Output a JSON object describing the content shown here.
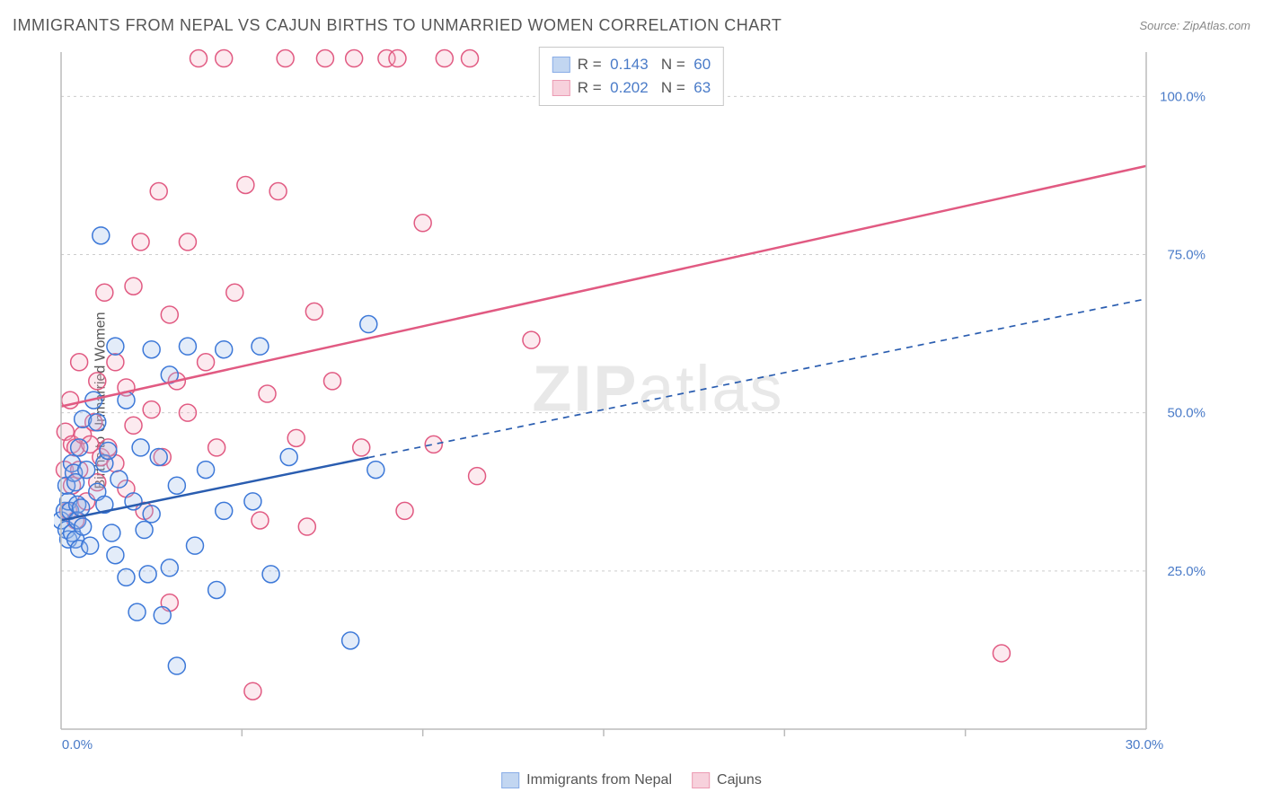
{
  "title": "IMMIGRANTS FROM NEPAL VS CAJUN BIRTHS TO UNMARRIED WOMEN CORRELATION CHART",
  "source_label": "Source: ZipAtlas.com",
  "y_axis_label": "Births to Unmarried Women",
  "watermark_bold": "ZIP",
  "watermark_thin": "atlas",
  "chart": {
    "type": "scatter",
    "background_color": "#ffffff",
    "grid_color": "#cccccc",
    "axis_color": "#bbbbbb",
    "xlim": [
      0,
      30
    ],
    "ylim": [
      0,
      107
    ],
    "xtick_label_min": "0.0%",
    "xtick_label_max": "30.0%",
    "xtick_marks": [
      5,
      10,
      15,
      20,
      25
    ],
    "ytick_labels": [
      "25.0%",
      "50.0%",
      "75.0%",
      "100.0%"
    ],
    "ytick_values": [
      25,
      50,
      75,
      100
    ],
    "ytick_color": "#4a7bc8",
    "xtick_color": "#4a7bc8",
    "label_fontsize": 15,
    "marker_radius": 9.5,
    "marker_stroke_width": 1.5,
    "marker_fill_opacity": 0.28,
    "trend_line_width": 2.5,
    "trend_dash": "7 6"
  },
  "series": [
    {
      "name": "Immigrants from Nepal",
      "color_stroke": "#3c78d8",
      "color_fill": "#9bbce8",
      "trend_color": "#2a5db0",
      "R": "0.143",
      "N": "60",
      "trend": {
        "x1": 0,
        "y1": 33,
        "x2": 30,
        "y2": 68,
        "solid_until_x": 8.5
      },
      "points": [
        [
          0.0,
          33
        ],
        [
          0.1,
          34.5
        ],
        [
          0.15,
          38.5
        ],
        [
          0.15,
          31.5
        ],
        [
          0.2,
          30
        ],
        [
          0.2,
          36
        ],
        [
          0.25,
          34.5
        ],
        [
          0.3,
          42
        ],
        [
          0.3,
          31
        ],
        [
          0.35,
          40.5
        ],
        [
          0.4,
          30
        ],
        [
          0.4,
          39
        ],
        [
          0.45,
          35.5
        ],
        [
          0.45,
          33
        ],
        [
          0.5,
          44.5
        ],
        [
          0.5,
          28.5
        ],
        [
          0.55,
          35
        ],
        [
          0.6,
          32
        ],
        [
          0.6,
          49
        ],
        [
          0.7,
          41
        ],
        [
          0.8,
          29
        ],
        [
          0.9,
          52
        ],
        [
          1.0,
          37.5
        ],
        [
          1.0,
          48.5
        ],
        [
          1.1,
          78
        ],
        [
          1.2,
          42
        ],
        [
          1.2,
          35.5
        ],
        [
          1.3,
          44
        ],
        [
          1.4,
          31
        ],
        [
          1.5,
          60.5
        ],
        [
          1.5,
          27.5
        ],
        [
          1.6,
          39.5
        ],
        [
          1.8,
          24
        ],
        [
          1.8,
          52
        ],
        [
          2.0,
          36
        ],
        [
          2.1,
          18.5
        ],
        [
          2.2,
          44.5
        ],
        [
          2.3,
          31.5
        ],
        [
          2.4,
          24.5
        ],
        [
          2.5,
          60
        ],
        [
          2.5,
          34
        ],
        [
          2.7,
          43
        ],
        [
          2.8,
          18
        ],
        [
          3.0,
          25.5
        ],
        [
          3.0,
          56
        ],
        [
          3.2,
          38.5
        ],
        [
          3.2,
          10
        ],
        [
          3.5,
          60.5
        ],
        [
          3.7,
          29
        ],
        [
          4.0,
          41
        ],
        [
          4.3,
          22
        ],
        [
          4.5,
          60
        ],
        [
          4.5,
          34.5
        ],
        [
          5.3,
          36
        ],
        [
          5.5,
          60.5
        ],
        [
          5.8,
          24.5
        ],
        [
          6.3,
          43
        ],
        [
          8.0,
          14
        ],
        [
          8.5,
          64
        ],
        [
          8.7,
          41
        ]
      ]
    },
    {
      "name": "Cajuns",
      "color_stroke": "#e15a82",
      "color_fill": "#f3b4c6",
      "trend_color": "#e15a82",
      "R": "0.202",
      "N": "63",
      "trend": {
        "x1": 0,
        "y1": 51,
        "x2": 30,
        "y2": 89,
        "solid_until_x": 30
      },
      "points": [
        [
          0.1,
          41
        ],
        [
          0.12,
          47
        ],
        [
          0.2,
          34.5
        ],
        [
          0.25,
          52
        ],
        [
          0.3,
          38.5
        ],
        [
          0.3,
          45
        ],
        [
          0.4,
          44.5
        ],
        [
          0.4,
          33
        ],
        [
          0.5,
          41
        ],
        [
          0.5,
          58
        ],
        [
          0.6,
          46.5
        ],
        [
          0.7,
          36
        ],
        [
          0.8,
          45
        ],
        [
          0.9,
          48.5
        ],
        [
          1.0,
          39
        ],
        [
          1.0,
          55
        ],
        [
          1.1,
          43
        ],
        [
          1.2,
          69
        ],
        [
          1.3,
          44.5
        ],
        [
          1.5,
          58
        ],
        [
          1.5,
          42
        ],
        [
          1.8,
          54
        ],
        [
          1.8,
          38
        ],
        [
          2.0,
          70
        ],
        [
          2.0,
          48
        ],
        [
          2.2,
          77
        ],
        [
          2.3,
          34.5
        ],
        [
          2.5,
          50.5
        ],
        [
          2.7,
          85
        ],
        [
          2.8,
          43
        ],
        [
          3.0,
          20
        ],
        [
          3.0,
          65.5
        ],
        [
          3.2,
          55
        ],
        [
          3.5,
          77
        ],
        [
          3.5,
          50
        ],
        [
          3.8,
          106
        ],
        [
          4.0,
          58
        ],
        [
          4.3,
          44.5
        ],
        [
          4.5,
          106
        ],
        [
          4.8,
          69
        ],
        [
          5.1,
          86
        ],
        [
          5.3,
          6
        ],
        [
          5.5,
          33
        ],
        [
          5.7,
          53
        ],
        [
          6.0,
          85
        ],
        [
          6.2,
          106
        ],
        [
          6.5,
          46
        ],
        [
          6.8,
          32
        ],
        [
          7.0,
          66
        ],
        [
          7.3,
          106
        ],
        [
          7.5,
          55
        ],
        [
          8.1,
          106
        ],
        [
          8.3,
          44.5
        ],
        [
          9.0,
          106
        ],
        [
          9.3,
          106
        ],
        [
          9.5,
          34.5
        ],
        [
          10.0,
          80
        ],
        [
          10.3,
          45
        ],
        [
          10.6,
          106
        ],
        [
          11.3,
          106
        ],
        [
          11.5,
          40
        ],
        [
          13.0,
          61.5
        ],
        [
          26.0,
          12
        ]
      ]
    }
  ],
  "legend_top": {
    "R_label": "R",
    "N_label": "N",
    "eq": "="
  },
  "legend_bottom_items": [
    "Immigrants from Nepal",
    "Cajuns"
  ]
}
